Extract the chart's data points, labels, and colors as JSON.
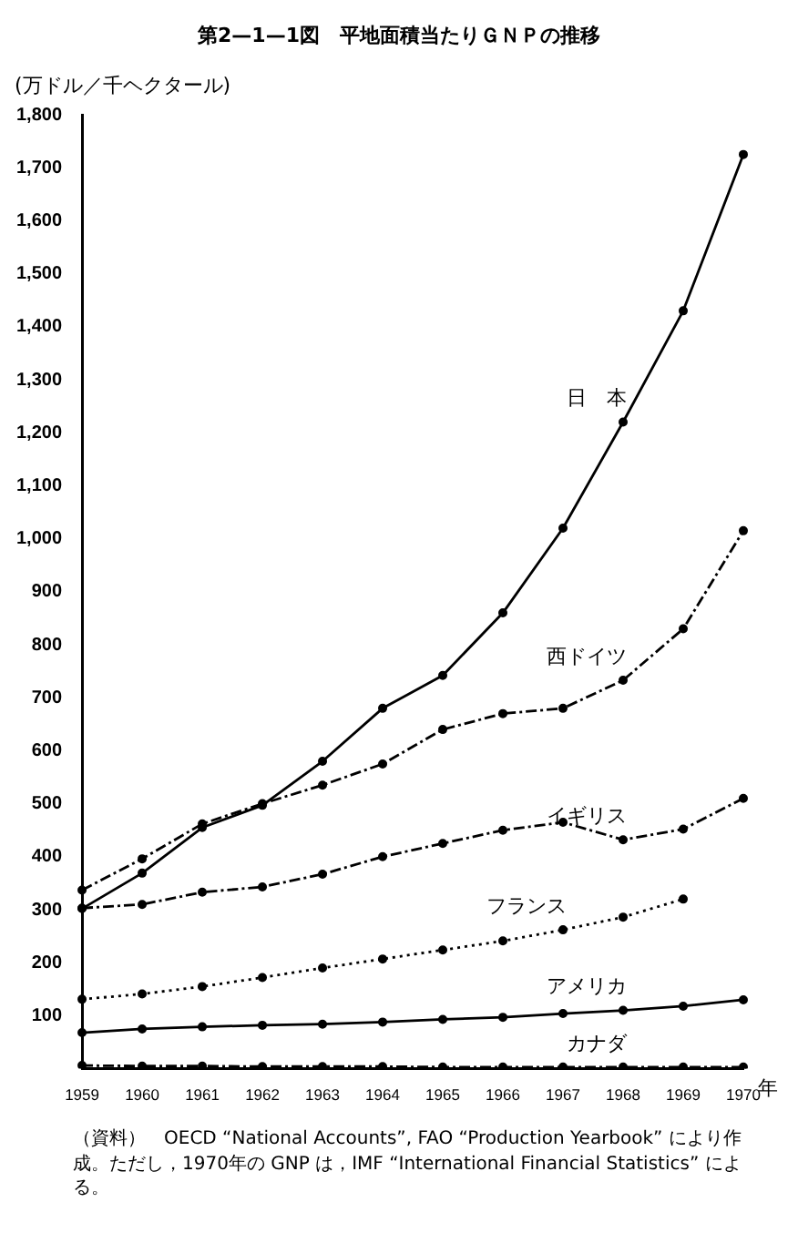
{
  "chart_data": {
    "type": "line",
    "title": "第2—1—1図　平地面積当たりＧＮＰの推移",
    "ylabel": "(万ドル／千ヘクタール)",
    "xlabel": "年",
    "categories": [
      "1959",
      "1960",
      "1961",
      "1962",
      "1963",
      "1964",
      "1965",
      "1966",
      "1967",
      "1968",
      "1969",
      "1970"
    ],
    "series": [
      {
        "name": "日　本",
        "color": "#000000",
        "line_style": "solid",
        "values": [
          302,
          369,
          455,
          497,
          580,
          680,
          742,
          860,
          1020,
          1220,
          1430,
          1725
        ]
      },
      {
        "name": "西ドイツ",
        "color": "#000000",
        "line_style": "dashed",
        "values": [
          337,
          396,
          462,
          500,
          535,
          575,
          640,
          670,
          680,
          733,
          830,
          1015
        ]
      },
      {
        "name": "イギリス",
        "color": "#000000",
        "line_style": "dashed",
        "values": [
          303,
          310,
          333,
          343,
          367,
          400,
          425,
          450,
          465,
          432,
          452,
          510
        ]
      },
      {
        "name": "フランス",
        "color": "#000000",
        "line_style": "dotted",
        "values": [
          131,
          141,
          155,
          172,
          190,
          207,
          224,
          241,
          262,
          286,
          320,
          null
        ]
      },
      {
        "name": "アメリカ",
        "color": "#000000",
        "line_style": "solid",
        "values": [
          68,
          75,
          79,
          82,
          84,
          88,
          93,
          97,
          104,
          110,
          118,
          130
        ]
      },
      {
        "name": "カナダ",
        "color": "#000000",
        "line_style": "dashed",
        "values": [
          6,
          5,
          5,
          4,
          4,
          4,
          3,
          3,
          3,
          3,
          3,
          3
        ]
      }
    ],
    "ylim": [
      0,
      1800
    ],
    "yticks": [
      100,
      200,
      300,
      400,
      500,
      600,
      700,
      800,
      900,
      {
        "value": 1000,
        "label": "1,000"
      },
      {
        "value": 1100,
        "label": "1,100"
      },
      {
        "value": 1200,
        "label": "1,200"
      },
      {
        "value": 1300,
        "label": "1,300"
      },
      {
        "value": 1400,
        "label": "1,400"
      },
      {
        "value": 1500,
        "label": "1,500"
      },
      {
        "value": 1600,
        "label": "1,600"
      },
      {
        "value": 1700,
        "label": "1,700"
      },
      {
        "value": 1800,
        "label": "1,800"
      }
    ],
    "grid": false,
    "legend": false,
    "marker": "circle",
    "annotations": [
      "（資料）　OECD “National Accounts”, FAO “Production Yearbook” により作成。ただし，1970年の GNP は，IMF “International Financial Statistics” による。"
    ]
  }
}
